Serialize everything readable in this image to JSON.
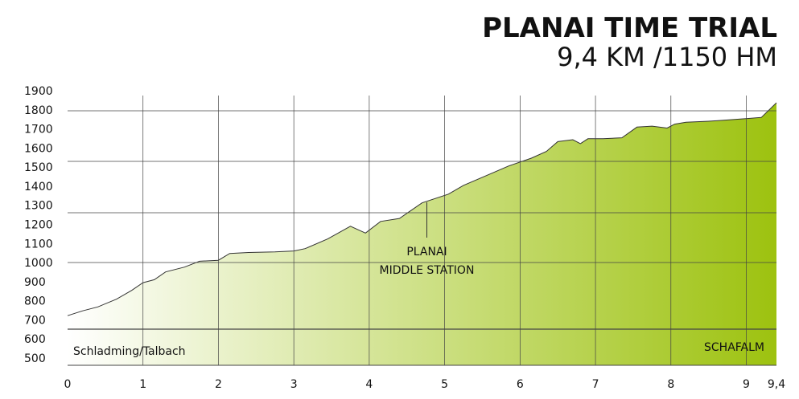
{
  "chart_data": {
    "type": "area",
    "title": "PLANAI TIME TRIAL",
    "subtitle": "9,4 KM /1150 HM",
    "xlabel": "",
    "ylabel": "",
    "xlim": [
      0,
      9.4
    ],
    "ylim": [
      500,
      1900
    ],
    "x_tick_labels": [
      {
        "value": 0,
        "label": "0"
      },
      {
        "value": 1,
        "label": "1"
      },
      {
        "value": 2,
        "label": "2"
      },
      {
        "value": 3,
        "label": "3"
      },
      {
        "value": 4,
        "label": "4"
      },
      {
        "value": 5,
        "label": "5"
      },
      {
        "value": 6,
        "label": "6"
      },
      {
        "value": 7,
        "label": "7"
      },
      {
        "value": 8,
        "label": "8"
      },
      {
        "value": 9,
        "label": "9"
      },
      {
        "value": 9.4,
        "label": "9,4"
      }
    ],
    "y_ticks": [
      500,
      600,
      700,
      800,
      900,
      1000,
      1100,
      1200,
      1300,
      1400,
      1500,
      1600,
      1700,
      1800,
      1900
    ],
    "series": [
      {
        "x": [
          0,
          0.2,
          0.4,
          0.65,
          0.85,
          1,
          1.15,
          1.3,
          1.55,
          1.75,
          2,
          2.15,
          2.4,
          2.75,
          3,
          3.15,
          3.45,
          3.75,
          3.95,
          4.15,
          4.4,
          4.7,
          5.05,
          5.25,
          5.55,
          5.85,
          6.15,
          6.35,
          6.5,
          6.7,
          6.8,
          6.9,
          7.1,
          7.35,
          7.55,
          7.75,
          7.95,
          8.05,
          8.2,
          8.5,
          8.7,
          9.05,
          9.2,
          9.4
        ],
        "y": [
          755,
          780,
          800,
          840,
          885,
          925,
          940,
          980,
          1005,
          1035,
          1040,
          1075,
          1080,
          1083,
          1088,
          1100,
          1150,
          1215,
          1180,
          1240,
          1255,
          1335,
          1380,
          1425,
          1475,
          1525,
          1565,
          1600,
          1650,
          1660,
          1640,
          1665,
          1665,
          1670,
          1725,
          1730,
          1720,
          1740,
          1750,
          1755,
          1760,
          1770,
          1775,
          1850
        ]
      }
    ],
    "annotations": [
      {
        "text": "PLANAI",
        "x": 4.7
      },
      {
        "text": "MIDDLE STATION",
        "x": 4.7
      },
      {
        "text": "Schladming/Talbach",
        "x": 0
      },
      {
        "text": "SCHAFALM",
        "x": 9.4
      }
    ],
    "grid": true,
    "legend": "none",
    "colors": {
      "fill_start": "#ffffff",
      "fill_end": "#9dc20f",
      "line": "#333333",
      "grid": "#444444",
      "text": "#111111"
    }
  }
}
